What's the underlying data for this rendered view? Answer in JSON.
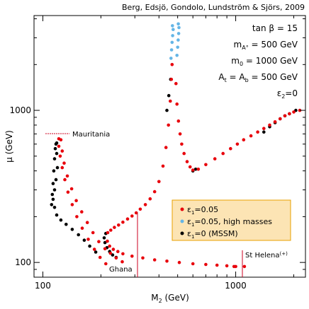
{
  "credit": "Berg, Edsjö, Gondolo, Lundström & Sjörs, 2009",
  "parameters": {
    "tanb": "tan β = 15",
    "ma_base": "m",
    "ma_sub": "A°",
    "ma_val": " = 500 GeV",
    "m0_base": "m",
    "m0_sub": "0",
    "m0_val": " = 1000 GeV",
    "at_base1": "A",
    "at_sub1": "t",
    "at_mid": " = A",
    "at_sub2": "b",
    "at_val": " = 500 GeV",
    "eps2_base": "ε",
    "eps2_sub": "2",
    "eps2_val": "=0"
  },
  "annotations": {
    "mauritania": "Mauritania",
    "ghana": "Ghana",
    "sthelena": "St Helena",
    "sthelena_sup": "(+)"
  },
  "colors": {
    "red": "#e8000b",
    "blue": "#64b5e6",
    "black": "#000000",
    "legend_bg": "#fce4b4",
    "legend_border": "#e8a000",
    "marker_line": "#cc0022"
  },
  "chart_data": {
    "type": "scatter",
    "xlabel_base": "M",
    "xlabel_sub": "2",
    "xlabel_unit": " (GeV)",
    "ylabel": "μ (GeV)",
    "xscale": "log",
    "yscale": "log",
    "xlim": [
      90,
      2300
    ],
    "ylim": [
      80,
      4200
    ],
    "xticks": [
      100,
      1000
    ],
    "xtick_labels": [
      "100",
      "1000"
    ],
    "yticks": [
      100,
      1000
    ],
    "ytick_labels": [
      "100",
      "1000"
    ],
    "legend": {
      "entries": [
        {
          "base": "ε",
          "sub": "1",
          "label": "=0.05",
          "color": "red"
        },
        {
          "base": "ε",
          "sub": "1",
          "label": "=0.05, high masses",
          "color": "blue"
        },
        {
          "base": "ε",
          "sub": "1",
          "label": "=0 (MSSM)",
          "color": "black"
        }
      ],
      "placement": "bottom-right"
    },
    "series": [
      {
        "color": "black",
        "points": [
          [
            116,
            560
          ],
          [
            115,
            480
          ],
          [
            114,
            400
          ],
          [
            113,
            330
          ],
          [
            112,
            280
          ],
          [
            111,
            240
          ],
          [
            113,
            260
          ],
          [
            115,
            300
          ],
          [
            117,
            350
          ],
          [
            119,
            420
          ],
          [
            118,
            520
          ],
          [
            117,
            600
          ],
          [
            118,
            610
          ],
          [
            115,
            230
          ],
          [
            118,
            205
          ],
          [
            124,
            190
          ],
          [
            132,
            178
          ],
          [
            142,
            165
          ],
          [
            153,
            152
          ],
          [
            164,
            140
          ],
          [
            175,
            128
          ],
          [
            188,
            117
          ],
          [
            212,
            155
          ],
          [
            208,
            145
          ],
          [
            210,
            135
          ],
          [
            215,
            125
          ],
          [
            222,
            118
          ],
          [
            230,
            112
          ],
          [
            240,
            108
          ],
          [
            440,
            1000
          ],
          [
            450,
            1250
          ],
          [
            460,
            1600
          ],
          [
            600,
            400
          ],
          [
            620,
            410
          ],
          [
            1400,
            720
          ],
          [
            1500,
            780
          ],
          [
            1600,
            830
          ],
          [
            1700,
            880
          ],
          [
            1800,
            920
          ],
          [
            1900,
            950
          ],
          [
            2050,
            1000
          ]
        ]
      },
      {
        "color": "red",
        "points": [
          [
            121,
            650
          ],
          [
            121,
            580
          ],
          [
            123,
            500
          ],
          [
            126,
            420
          ],
          [
            130,
            350
          ],
          [
            135,
            290
          ],
          [
            142,
            240
          ],
          [
            150,
            200
          ],
          [
            160,
            168
          ],
          [
            172,
            142
          ],
          [
            185,
            122
          ],
          [
            198,
            108
          ],
          [
            212,
            98
          ],
          [
            124,
            640
          ],
          [
            126,
            540
          ],
          [
            129,
            450
          ],
          [
            134,
            370
          ],
          [
            141,
            305
          ],
          [
            149,
            255
          ],
          [
            159,
            215
          ],
          [
            170,
            183
          ],
          [
            182,
            157
          ],
          [
            195,
            137
          ],
          [
            210,
            123
          ],
          [
            224,
            115
          ],
          [
            240,
            107
          ],
          [
            258,
            101
          ],
          [
            217,
            157
          ],
          [
            225,
            163
          ],
          [
            235,
            170
          ],
          [
            247,
            176
          ],
          [
            260,
            184
          ],
          [
            275,
            193
          ],
          [
            290,
            202
          ],
          [
            305,
            212
          ],
          [
            320,
            224
          ],
          [
            340,
            240
          ],
          [
            360,
            262
          ],
          [
            380,
            292
          ],
          [
            400,
            340
          ],
          [
            420,
            430
          ],
          [
            435,
            570
          ],
          [
            448,
            800
          ],
          [
            458,
            1150
          ],
          [
            464,
            1600
          ],
          [
            468,
            2000
          ],
          [
            216,
            138
          ],
          [
            222,
            128
          ],
          [
            232,
            122
          ],
          [
            245,
            118
          ],
          [
            260,
            114
          ],
          [
            290,
            110
          ],
          [
            330,
            107
          ],
          [
            380,
            104
          ],
          [
            440,
            102
          ],
          [
            510,
            100
          ],
          [
            600,
            98
          ],
          [
            700,
            97
          ],
          [
            800,
            96
          ],
          [
            900,
            95
          ],
          [
            980,
            94
          ],
          [
            1000,
            94
          ],
          [
            1110,
            94
          ],
          [
            490,
            1500
          ],
          [
            496,
            1100
          ],
          [
            505,
            850
          ],
          [
            515,
            700
          ],
          [
            525,
            600
          ],
          [
            540,
            520
          ],
          [
            560,
            460
          ],
          [
            580,
            425
          ],
          [
            600,
            405
          ],
          [
            640,
            410
          ],
          [
            700,
            440
          ],
          [
            780,
            480
          ],
          [
            860,
            520
          ],
          [
            940,
            560
          ],
          [
            1020,
            600
          ],
          [
            1100,
            640
          ],
          [
            1200,
            680
          ],
          [
            1300,
            720
          ],
          [
            1400,
            760
          ],
          [
            1500,
            800
          ],
          [
            1600,
            840
          ],
          [
            1700,
            880
          ],
          [
            1800,
            920
          ],
          [
            1900,
            950
          ],
          [
            2000,
            975
          ],
          [
            2150,
            1000
          ]
        ]
      },
      {
        "color": "blue",
        "points": [
          [
            462,
            2200
          ],
          [
            465,
            2500
          ],
          [
            468,
            2800
          ],
          [
            471,
            3100
          ],
          [
            474,
            3400
          ],
          [
            470,
            3600
          ],
          [
            496,
            2300
          ],
          [
            500,
            2600
          ],
          [
            503,
            2900
          ],
          [
            506,
            3200
          ],
          [
            508,
            3500
          ],
          [
            504,
            3700
          ]
        ]
      }
    ]
  }
}
